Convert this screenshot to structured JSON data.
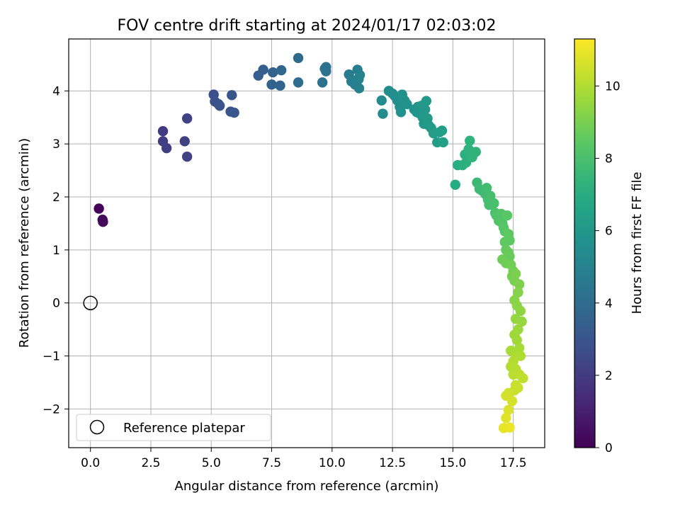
{
  "chart_data": {
    "type": "scatter",
    "title": "FOV centre drift starting at 2024/01/17 02:03:02",
    "xlabel": "Angular distance from reference (arcmin)",
    "ylabel": "Rotation from reference (arcmin)",
    "xlim": [
      -0.9,
      18.8
    ],
    "ylim": [
      -2.73,
      4.98
    ],
    "xticks": [
      0.0,
      2.5,
      5.0,
      7.5,
      10.0,
      12.5,
      15.0,
      17.5
    ],
    "xtick_labels": [
      "0.0",
      "2.5",
      "5.0",
      "7.5",
      "10.0",
      "12.5",
      "15.0",
      "17.5"
    ],
    "yticks": [
      -2,
      -1,
      0,
      1,
      2,
      3,
      4
    ],
    "ytick_labels": [
      "−2",
      "−1",
      "0",
      "1",
      "2",
      "3",
      "4"
    ],
    "grid": true,
    "colormap": "viridis",
    "colorbar": {
      "label": "Hours from first FF file",
      "range": [
        0,
        11.3
      ],
      "ticks": [
        0,
        2,
        4,
        6,
        8,
        10
      ],
      "tick_labels": [
        "0",
        "2",
        "4",
        "6",
        "8",
        "10"
      ]
    },
    "legend": {
      "placement": "lower-left",
      "entries": [
        "Reference platepar"
      ]
    },
    "reference_point": {
      "x": 0,
      "y": 0,
      "label": "Reference platepar"
    },
    "series": [
      {
        "columns": [
          "x",
          "y",
          "hours"
        ],
        "points": [
          [
            0.35,
            1.78,
            0.1
          ],
          [
            0.5,
            1.57,
            0.2
          ],
          [
            0.52,
            1.53,
            0.25
          ],
          [
            3.0,
            3.24,
            2.0
          ],
          [
            3.0,
            3.05,
            2.05
          ],
          [
            3.15,
            2.92,
            2.1
          ],
          [
            3.9,
            3.05,
            2.2
          ],
          [
            4.0,
            2.76,
            2.25
          ],
          [
            4.0,
            3.48,
            2.3
          ],
          [
            5.1,
            3.93,
            2.8
          ],
          [
            5.15,
            3.8,
            2.85
          ],
          [
            5.3,
            3.75,
            2.9
          ],
          [
            5.35,
            3.72,
            2.9
          ],
          [
            5.8,
            3.61,
            3.0
          ],
          [
            5.85,
            3.92,
            3.05
          ],
          [
            5.95,
            3.59,
            3.1
          ],
          [
            6.95,
            4.29,
            3.4
          ],
          [
            7.15,
            4.4,
            3.45
          ],
          [
            7.5,
            4.12,
            3.55
          ],
          [
            7.55,
            4.35,
            3.6
          ],
          [
            7.85,
            4.1,
            3.7
          ],
          [
            7.9,
            4.39,
            3.75
          ],
          [
            8.6,
            4.62,
            3.95
          ],
          [
            8.6,
            4.16,
            4.0
          ],
          [
            9.6,
            4.16,
            4.25
          ],
          [
            9.7,
            4.42,
            4.3
          ],
          [
            9.75,
            4.37,
            4.35
          ],
          [
            9.75,
            4.45,
            4.35
          ],
          [
            10.7,
            4.31,
            4.7
          ],
          [
            10.8,
            4.18,
            4.75
          ],
          [
            10.95,
            4.12,
            4.8
          ],
          [
            11.05,
            4.4,
            4.85
          ],
          [
            11.1,
            4.22,
            4.9
          ],
          [
            11.12,
            4.05,
            4.95
          ],
          [
            11.15,
            4.3,
            5.0
          ],
          [
            11.0,
            4.2,
            4.9
          ],
          [
            12.05,
            3.82,
            5.4
          ],
          [
            12.1,
            3.57,
            5.45
          ],
          [
            12.35,
            4.0,
            5.5
          ],
          [
            12.5,
            3.95,
            5.55
          ],
          [
            12.6,
            3.9,
            5.55
          ],
          [
            12.7,
            3.82,
            5.6
          ],
          [
            12.8,
            3.7,
            5.65
          ],
          [
            12.85,
            3.6,
            5.7
          ],
          [
            12.9,
            3.93,
            5.7
          ],
          [
            13.0,
            3.82,
            5.75
          ],
          [
            13.1,
            3.75,
            5.75
          ],
          [
            13.4,
            3.65,
            5.85
          ],
          [
            13.5,
            3.6,
            5.9
          ],
          [
            13.55,
            3.7,
            5.9
          ],
          [
            13.6,
            3.58,
            5.95
          ],
          [
            13.7,
            3.72,
            6.0
          ],
          [
            13.75,
            3.5,
            6.0
          ],
          [
            13.8,
            3.38,
            6.05
          ],
          [
            13.85,
            3.65,
            6.05
          ],
          [
            13.9,
            3.81,
            6.1
          ],
          [
            13.95,
            3.48,
            6.1
          ],
          [
            14.0,
            3.35,
            6.15
          ],
          [
            14.1,
            3.3,
            6.2
          ],
          [
            14.2,
            3.2,
            6.25
          ],
          [
            14.35,
            3.03,
            6.3
          ],
          [
            14.45,
            3.22,
            6.35
          ],
          [
            14.55,
            3.25,
            6.4
          ],
          [
            14.6,
            3.03,
            6.45
          ],
          [
            15.1,
            2.23,
            7.0
          ],
          [
            15.2,
            2.6,
            7.05
          ],
          [
            15.4,
            2.6,
            7.1
          ],
          [
            15.5,
            2.8,
            7.15
          ],
          [
            15.55,
            2.65,
            7.2
          ],
          [
            15.6,
            2.72,
            7.2
          ],
          [
            15.65,
            2.9,
            7.25
          ],
          [
            15.7,
            3.06,
            7.3
          ],
          [
            15.8,
            2.75,
            7.3
          ],
          [
            15.95,
            2.85,
            7.35
          ],
          [
            16.0,
            2.27,
            7.6
          ],
          [
            16.1,
            2.15,
            7.65
          ],
          [
            16.2,
            2.12,
            7.7
          ],
          [
            16.35,
            2.05,
            7.75
          ],
          [
            16.4,
            2.17,
            7.8
          ],
          [
            16.45,
            1.95,
            7.85
          ],
          [
            16.5,
            1.85,
            7.9
          ],
          [
            16.55,
            2.02,
            7.9
          ],
          [
            16.6,
            1.9,
            7.95
          ],
          [
            16.7,
            1.88,
            8.0
          ],
          [
            16.75,
            1.7,
            8.05
          ],
          [
            16.8,
            1.65,
            8.1
          ],
          [
            16.9,
            1.55,
            8.15
          ],
          [
            17.0,
            1.68,
            8.2
          ],
          [
            17.05,
            1.5,
            8.25
          ],
          [
            17.1,
            1.42,
            8.3
          ],
          [
            17.15,
            1.35,
            8.35
          ],
          [
            17.25,
            1.65,
            8.4
          ],
          [
            17.3,
            1.3,
            8.45
          ],
          [
            17.35,
            1.18,
            8.5
          ],
          [
            17.15,
            1.15,
            8.5
          ],
          [
            17.2,
            1.0,
            8.6
          ],
          [
            17.3,
            0.95,
            8.65
          ],
          [
            17.35,
            0.88,
            8.7
          ],
          [
            17.05,
            0.82,
            8.75
          ],
          [
            17.2,
            0.75,
            8.8
          ],
          [
            17.4,
            0.72,
            8.85
          ],
          [
            17.5,
            0.6,
            8.9
          ],
          [
            17.45,
            0.5,
            8.95
          ],
          [
            17.55,
            0.42,
            9.0
          ],
          [
            17.6,
            0.55,
            9.05
          ],
          [
            17.75,
            0.35,
            9.1
          ],
          [
            17.7,
            0.2,
            9.2
          ],
          [
            17.55,
            0.05,
            9.25
          ],
          [
            17.65,
            -0.05,
            9.3
          ],
          [
            17.8,
            -0.15,
            9.4
          ],
          [
            17.6,
            -0.3,
            9.45
          ],
          [
            17.85,
            -0.35,
            9.5
          ],
          [
            17.7,
            -0.5,
            9.6
          ],
          [
            17.55,
            -0.6,
            9.65
          ],
          [
            17.65,
            -0.7,
            9.7
          ],
          [
            17.75,
            -0.85,
            9.8
          ],
          [
            17.4,
            -0.9,
            9.85
          ],
          [
            17.6,
            -1.0,
            9.9
          ],
          [
            17.8,
            -1.0,
            9.95
          ],
          [
            17.5,
            -1.1,
            10.0
          ],
          [
            17.4,
            -1.2,
            10.05
          ],
          [
            17.6,
            -1.25,
            10.1
          ],
          [
            17.5,
            -1.35,
            10.15
          ],
          [
            17.75,
            -1.35,
            10.2
          ],
          [
            17.9,
            -1.42,
            10.25
          ],
          [
            17.6,
            -1.55,
            10.35
          ],
          [
            17.7,
            -1.6,
            10.4
          ],
          [
            17.55,
            -1.65,
            10.45
          ],
          [
            17.3,
            -1.7,
            10.5
          ],
          [
            17.2,
            -1.75,
            10.55
          ],
          [
            17.45,
            -1.85,
            10.6
          ],
          [
            17.3,
            -2.02,
            10.7
          ],
          [
            17.2,
            -2.17,
            10.8
          ],
          [
            17.1,
            -2.36,
            10.9
          ],
          [
            17.35,
            -2.35,
            11.0
          ]
        ]
      }
    ]
  }
}
